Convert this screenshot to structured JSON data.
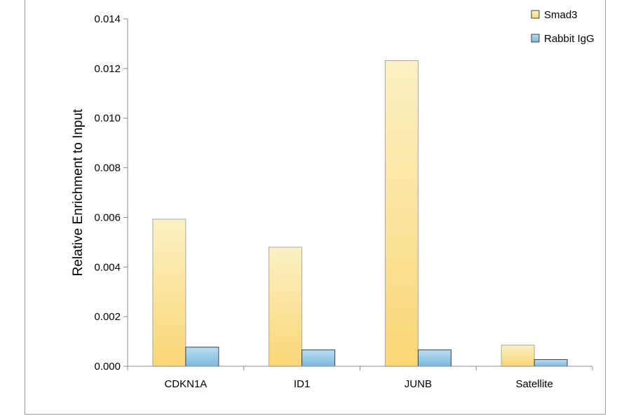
{
  "chart_data": {
    "type": "bar",
    "title": "",
    "xlabel": "",
    "ylabel": "Relative Enrichment to Input",
    "categories": [
      "CDKN1A",
      "ID1",
      "JUNB",
      "Satellite"
    ],
    "series": [
      {
        "name": "Smad3",
        "values": [
          0.00593,
          0.0048,
          0.01232,
          0.00085
        ],
        "color_top": "#fbf1c4",
        "color_bottom": "#fad675"
      },
      {
        "name": "Rabbit IgG",
        "values": [
          0.00077,
          0.00066,
          0.00066,
          0.00027
        ],
        "color_top": "#b9def3",
        "color_bottom": "#7cb8de"
      }
    ],
    "ylim": [
      0,
      0.014
    ],
    "yticks": [
      0.0,
      0.002,
      0.004,
      0.006,
      0.008,
      0.01,
      0.012,
      0.014
    ],
    "ytick_labels": [
      "0.000",
      "0.002",
      "0.004",
      "0.006",
      "0.008",
      "0.010",
      "0.012",
      "0.014"
    ],
    "grid": false,
    "legend_position": "top-right"
  }
}
